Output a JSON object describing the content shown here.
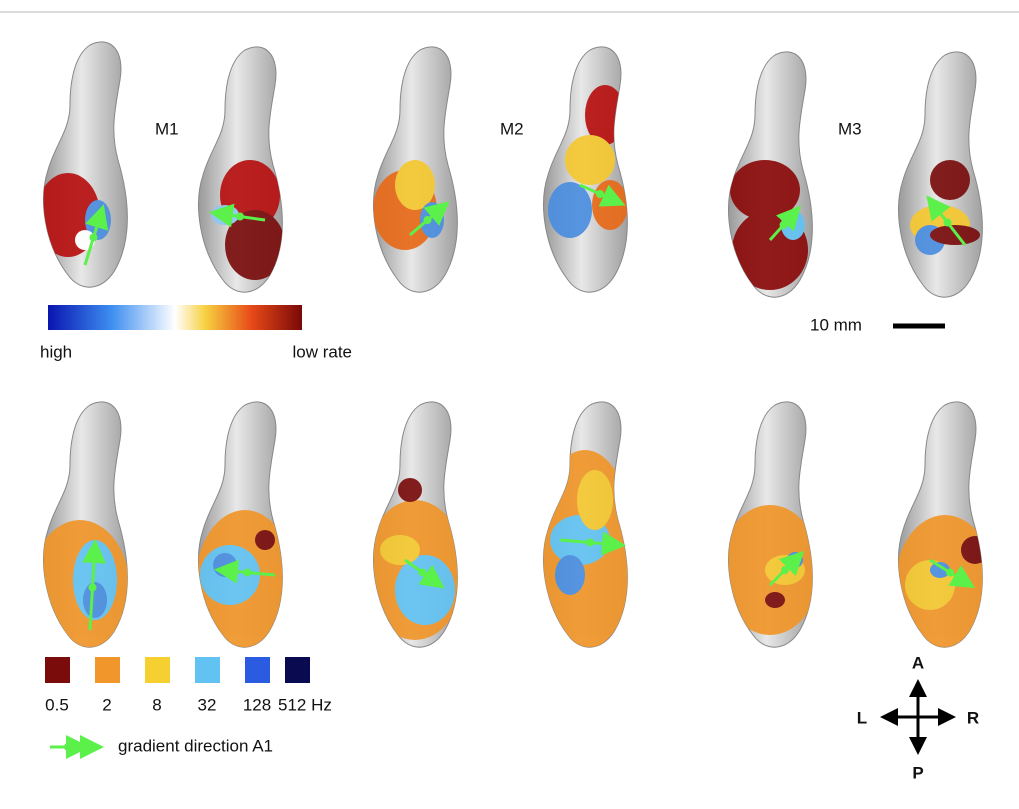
{
  "panels": [
    {
      "label": "M1"
    },
    {
      "label": "M2"
    },
    {
      "label": "M3"
    }
  ],
  "colorbar": {
    "low_label": "high",
    "high_label": "low rate"
  },
  "scale_bar": {
    "label": "10 mm"
  },
  "frequency_legend": {
    "items": [
      {
        "label": "0.5",
        "color": "#7a0c0c"
      },
      {
        "label": "2",
        "color": "#f0962a"
      },
      {
        "label": "8",
        "color": "#f5d030"
      },
      {
        "label": "32",
        "color": "#62c3f2"
      },
      {
        "label": "128",
        "color": "#2a5be0"
      },
      {
        "label": "512 Hz",
        "color": "#0a0a50"
      }
    ]
  },
  "gradient_legend": {
    "label": "gradient direction A1"
  },
  "compass": {
    "anterior": "A",
    "posterior": "P",
    "left": "L",
    "right": "R"
  }
}
